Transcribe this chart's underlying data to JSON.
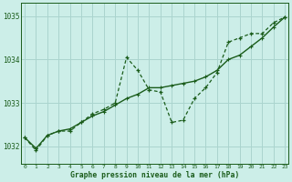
{
  "xlabel": "Graphe pression niveau de la mer (hPa)",
  "background_color": "#cceee8",
  "grid_color": "#aad4ce",
  "line_color": "#1a5c1a",
  "hours": [
    0,
    1,
    2,
    3,
    4,
    5,
    6,
    7,
    8,
    9,
    10,
    11,
    12,
    13,
    14,
    15,
    16,
    17,
    18,
    19,
    20,
    21,
    22,
    23
  ],
  "values_jagged": [
    1032.2,
    1031.9,
    1032.25,
    1032.35,
    1032.35,
    1032.55,
    1032.75,
    1032.85,
    1033.0,
    1034.05,
    1033.75,
    1033.3,
    1033.25,
    1032.55,
    1032.6,
    1033.1,
    1033.35,
    1033.7,
    1034.4,
    1034.5,
    1034.6,
    1034.6,
    1034.85,
    1034.98
  ],
  "values_trend": [
    1032.2,
    1031.95,
    1032.25,
    1032.35,
    1032.4,
    1032.55,
    1032.7,
    1032.8,
    1032.95,
    1033.1,
    1033.2,
    1033.35,
    1033.35,
    1033.4,
    1033.45,
    1033.5,
    1033.6,
    1033.75,
    1034.0,
    1034.1,
    1034.3,
    1034.5,
    1034.75,
    1034.98
  ],
  "ylim": [
    1031.6,
    1035.3
  ],
  "yticks": [
    1032,
    1033,
    1034,
    1035
  ],
  "figwidth": 3.2,
  "figheight": 2.0,
  "dpi": 100
}
